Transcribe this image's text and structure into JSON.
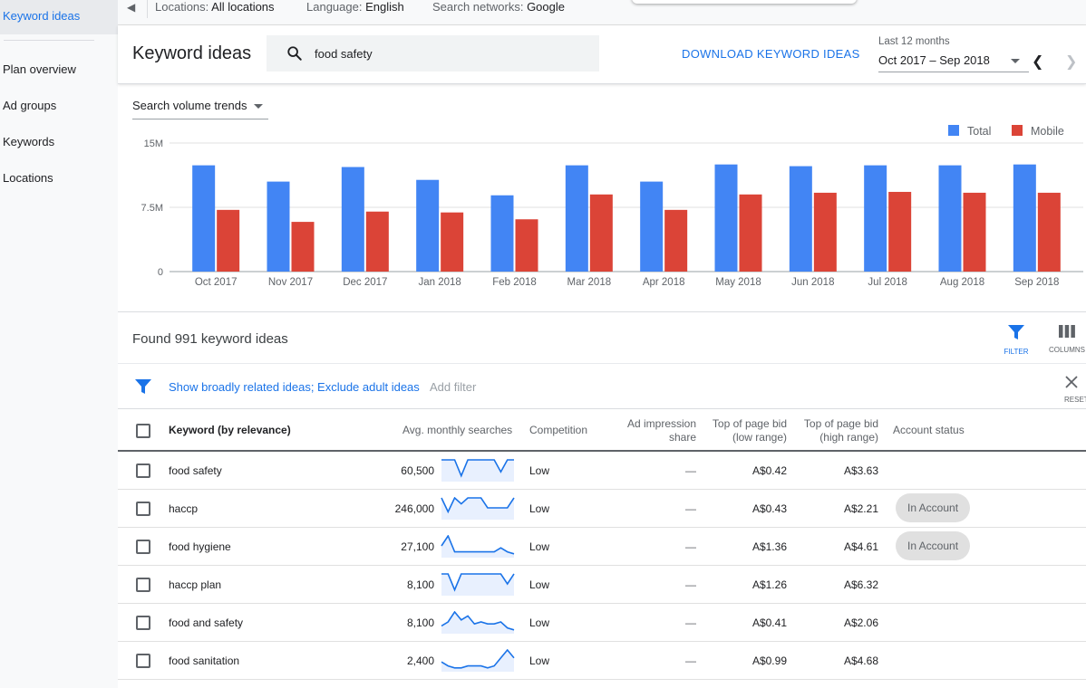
{
  "sidebar": {
    "items": [
      {
        "label": "Keyword ideas"
      },
      {
        "label": "Plan overview"
      },
      {
        "label": "Ad groups"
      },
      {
        "label": "Keywords"
      },
      {
        "label": "Locations"
      }
    ]
  },
  "filters": {
    "locations_label": "Locations:",
    "locations_value": "All locations",
    "language_label": "Language:",
    "language_value": "English",
    "networks_label": "Search networks:",
    "networks_value": "Google"
  },
  "header": {
    "title": "Keyword ideas",
    "search_value": "food safety",
    "download_label": "DOWNLOAD KEYWORD IDEAS",
    "date_range_label": "Last 12 months",
    "date_range_value": "Oct 2017 – Sep 2018"
  },
  "chart_selector": "Search volume trends",
  "chart_data": {
    "type": "bar",
    "categories": [
      "Oct 2017",
      "Nov 2017",
      "Dec 2017",
      "Jan 2018",
      "Feb 2018",
      "Mar 2018",
      "Apr 2018",
      "May 2018",
      "Jun 2018",
      "Jul 2018",
      "Aug 2018",
      "Sep 2018"
    ],
    "series": [
      {
        "name": "Total",
        "color": "#4285f4",
        "values": [
          12.4,
          10.5,
          12.2,
          10.7,
          8.9,
          12.4,
          10.5,
          12.5,
          12.3,
          12.4,
          12.4,
          12.5
        ]
      },
      {
        "name": "Mobile",
        "color": "#db4437",
        "values": [
          7.2,
          5.8,
          7.0,
          6.9,
          6.1,
          9.0,
          7.2,
          9.0,
          9.2,
          9.3,
          9.2,
          9.2
        ]
      }
    ],
    "y_ticks": [
      "0",
      "7.5M",
      "15M"
    ],
    "ylim": [
      0,
      15
    ],
    "legend": "top-right",
    "grid": true
  },
  "results": {
    "found_text": "Found 991 keyword ideas",
    "filter_label": "FILTER",
    "columns_label": "COLUMNS",
    "applied_filter": "Show broadly related ideas; Exclude adult ideas",
    "add_filter": "Add filter",
    "reset_label": "RESET"
  },
  "table": {
    "headers": {
      "keyword": "Keyword (by relevance)",
      "searches": "Avg. monthly searches",
      "competition": "Competition",
      "share_1": "Ad impression",
      "share_2": "share",
      "bid_low_1": "Top of page bid",
      "bid_low_2": "(low range)",
      "bid_high_1": "Top of page bid",
      "bid_high_2": "(high range)",
      "account": "Account status"
    },
    "rows": [
      {
        "keyword": "food safety",
        "searches": "60,500",
        "competition": "Low",
        "share": "—",
        "bid_low": "A$0.42",
        "bid_high": "A$3.63",
        "account": "",
        "trend": [
          1,
          1,
          1,
          0.2,
          1,
          1,
          1,
          1,
          1,
          0.4,
          1,
          1
        ]
      },
      {
        "keyword": "haccp",
        "searches": "246,000",
        "competition": "Low",
        "share": "—",
        "bid_low": "A$0.43",
        "bid_high": "A$2.21",
        "account": "In Account",
        "trend": [
          1,
          0.3,
          1,
          0.7,
          1,
          1,
          1,
          0.5,
          0.5,
          0.5,
          0.5,
          1
        ]
      },
      {
        "keyword": "food hygiene",
        "searches": "27,100",
        "competition": "Low",
        "share": "—",
        "bid_low": "A$1.36",
        "bid_high": "A$4.61",
        "account": "In Account",
        "trend": [
          0.5,
          1,
          0.2,
          0.2,
          0.2,
          0.2,
          0.2,
          0.2,
          0.2,
          0.4,
          0.2,
          0.1
        ]
      },
      {
        "keyword": "haccp plan",
        "searches": "8,100",
        "competition": "Low",
        "share": "—",
        "bid_low": "A$1.26",
        "bid_high": "A$6.32",
        "account": "",
        "trend": [
          1,
          1,
          0.2,
          1,
          1,
          1,
          1,
          1,
          1,
          1,
          0.5,
          1
        ]
      },
      {
        "keyword": "food and safety",
        "searches": "8,100",
        "competition": "Low",
        "share": "—",
        "bid_low": "A$0.41",
        "bid_high": "A$2.06",
        "account": "",
        "trend": [
          0.3,
          0.5,
          1,
          0.6,
          0.8,
          0.4,
          0.5,
          0.4,
          0.4,
          0.5,
          0.2,
          0.1
        ]
      },
      {
        "keyword": "food sanitation",
        "searches": "2,400",
        "competition": "Low",
        "share": "—",
        "bid_low": "A$0.99",
        "bid_high": "A$4.68",
        "account": "",
        "trend": [
          0.4,
          0.2,
          0.1,
          0.1,
          0.2,
          0.2,
          0.2,
          0.1,
          0.2,
          0.6,
          1,
          0.6
        ]
      }
    ]
  }
}
